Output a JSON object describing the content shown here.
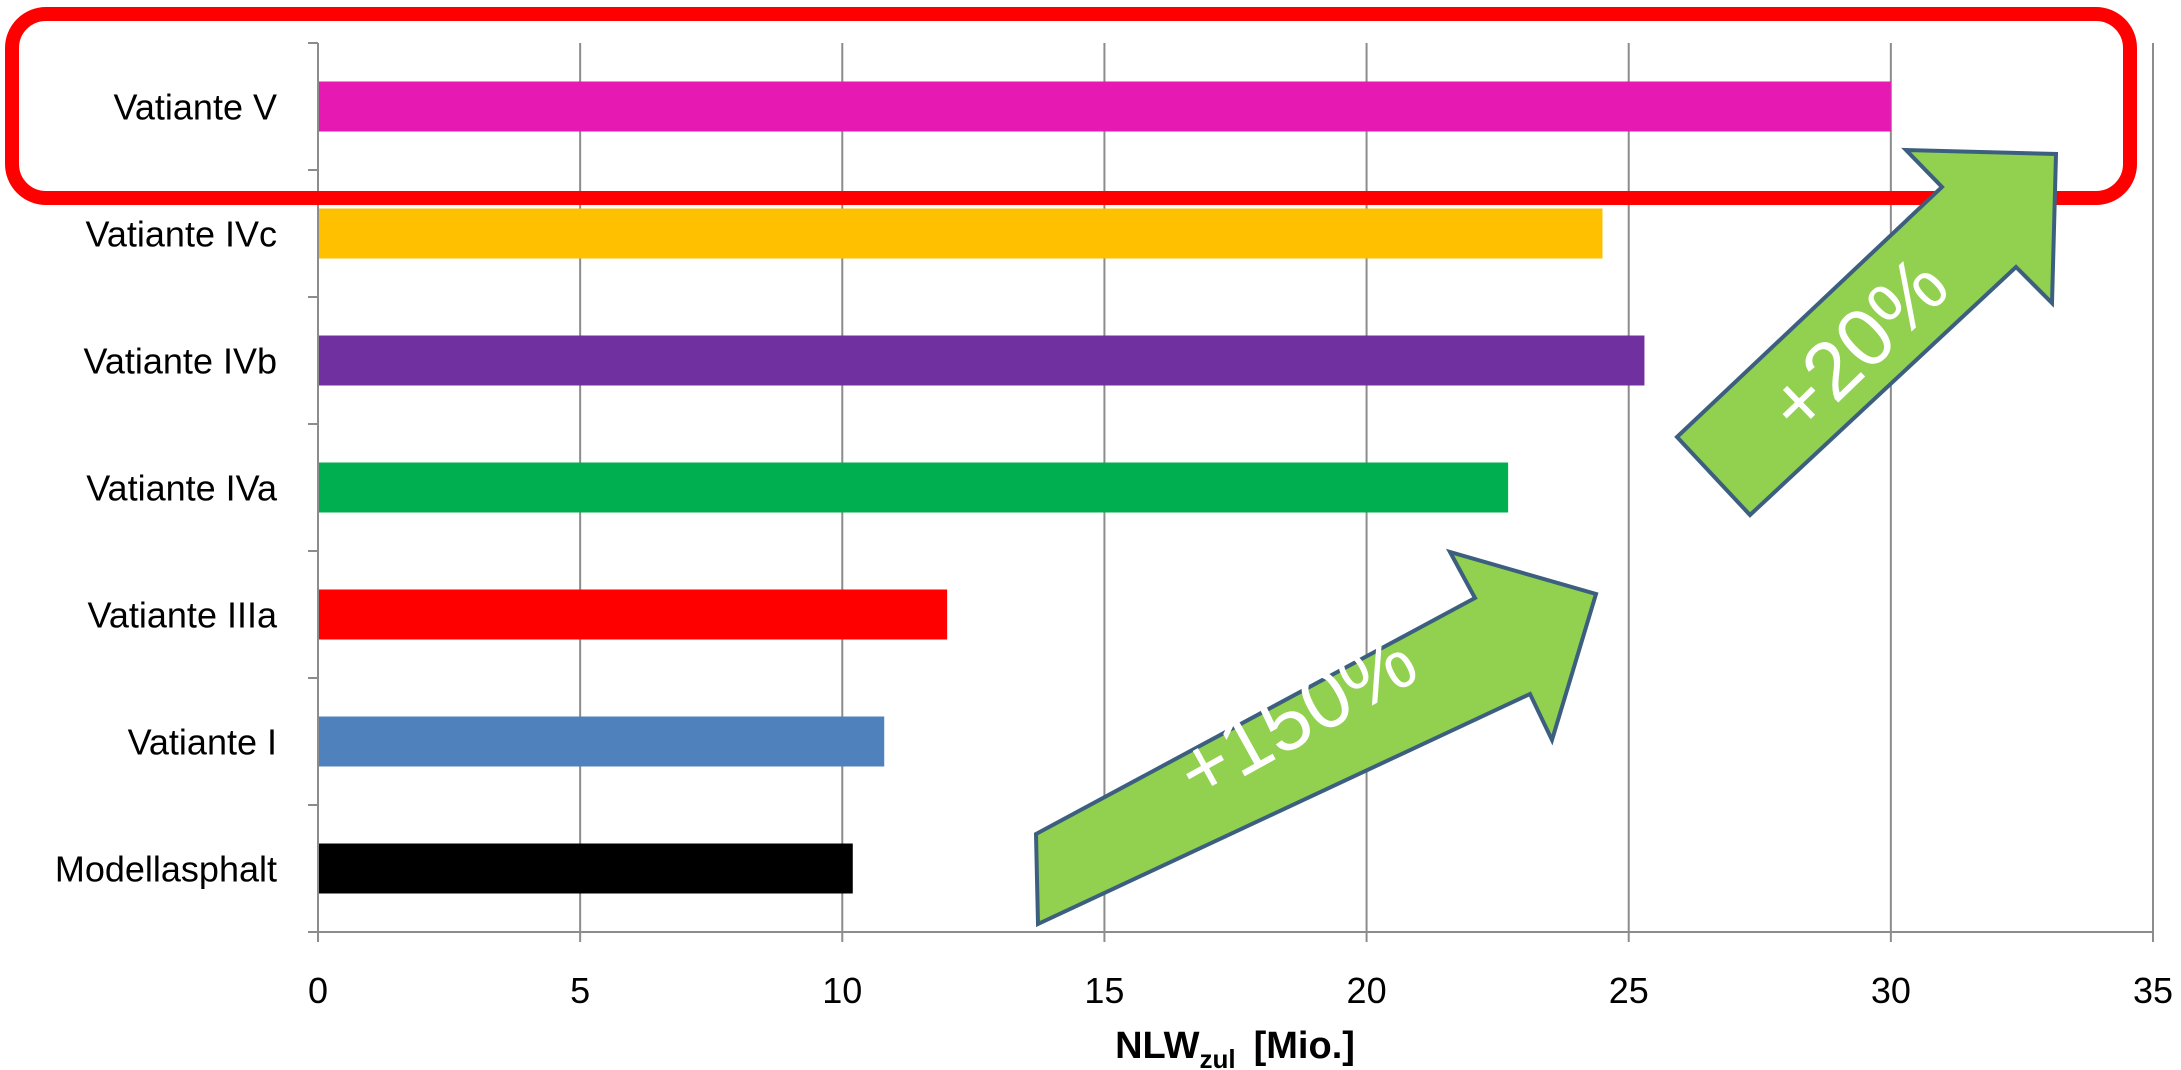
{
  "chart_data": {
    "type": "bar",
    "orientation": "horizontal",
    "categories": [
      "Vatiante V",
      "Vatiante IVc",
      "Vatiante IVb",
      "Vatiante IVa",
      "Vatiante IIIa",
      "Vatiante I",
      "Modellasphalt"
    ],
    "values": [
      30.0,
      24.5,
      25.3,
      22.7,
      12.0,
      10.8,
      10.2
    ],
    "colors": [
      "#e619b3",
      "#ffc000",
      "#7030a0",
      "#00b050",
      "#ff0000",
      "#4f81bd",
      "#000000"
    ],
    "xlabel": {
      "main": "NLW",
      "sub": "zul",
      "unit": "[Mio.]"
    },
    "xlim": [
      0,
      35
    ],
    "xticks": [
      0,
      5,
      10,
      15,
      20,
      25,
      30,
      35
    ],
    "grid": true,
    "highlight": {
      "category": "Vatiante V",
      "color": "#ff0000"
    },
    "annotations": [
      {
        "text": "+150%",
        "color": "#92d050"
      },
      {
        "text": "+20%",
        "color": "#92d050"
      }
    ]
  }
}
